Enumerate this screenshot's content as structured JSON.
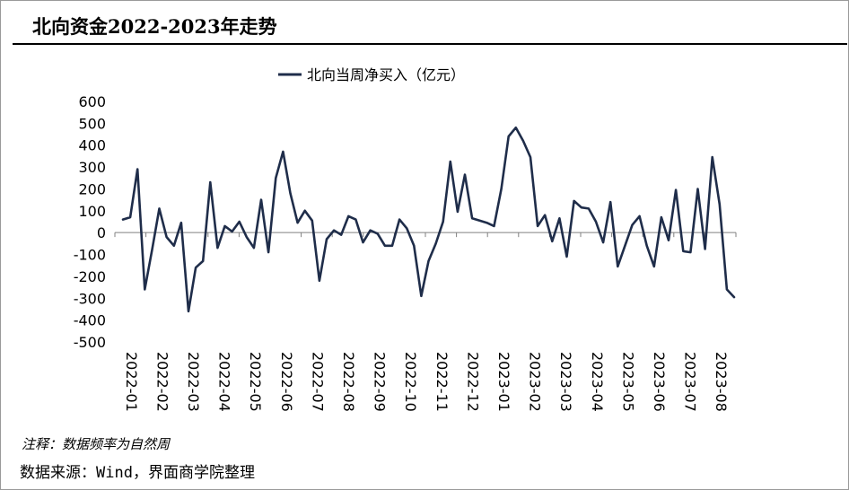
{
  "header": {
    "title": "北向资金2022-2023年走势"
  },
  "footer": {
    "note": "注释：数据频率为自然周",
    "source": "数据来源：Wind，界面商学院整理"
  },
  "chart_data": {
    "type": "line",
    "legend": {
      "label": "北向当周净买入（亿元）",
      "position": "top-center"
    },
    "ylim": [
      -500,
      600
    ],
    "y_ticks": [
      600,
      500,
      400,
      300,
      200,
      100,
      0,
      -100,
      -200,
      -300,
      -400,
      -500
    ],
    "x_tick_labels": [
      "2022-01",
      "2022-02",
      "2022-03",
      "2022-04",
      "2022-05",
      "2022-06",
      "2022-07",
      "2022-08",
      "2022-09",
      "2022-10",
      "2022-11",
      "2022-12",
      "2023-01",
      "2023-02",
      "2023-03",
      "2023-04",
      "2023-05",
      "2023-06",
      "2023-07",
      "2023-08"
    ],
    "grid": false,
    "series_color": "#1f2d4a",
    "series": [
      {
        "values": [
          60,
          70,
          290,
          -260,
          -80,
          110,
          -20,
          -60,
          45,
          -360,
          -160,
          -130,
          230,
          -70,
          30,
          5,
          50,
          -20,
          -70,
          150,
          -90,
          250,
          370,
          180,
          45,
          100,
          55,
          -220,
          -30,
          10,
          -10,
          75,
          60,
          -45,
          10,
          -5,
          -60,
          -60,
          60,
          20,
          -60,
          -290,
          -130,
          -50,
          50,
          325,
          95,
          265,
          65,
          55,
          45,
          30,
          200,
          440,
          480,
          420,
          345,
          30,
          80,
          -40,
          65,
          -110,
          145,
          115,
          110,
          50,
          -45,
          140,
          -155,
          -60,
          35,
          75,
          -60,
          -155,
          70,
          -35,
          195,
          -85,
          -90,
          200,
          -75,
          345,
          130,
          -260,
          -295
        ]
      }
    ]
  }
}
